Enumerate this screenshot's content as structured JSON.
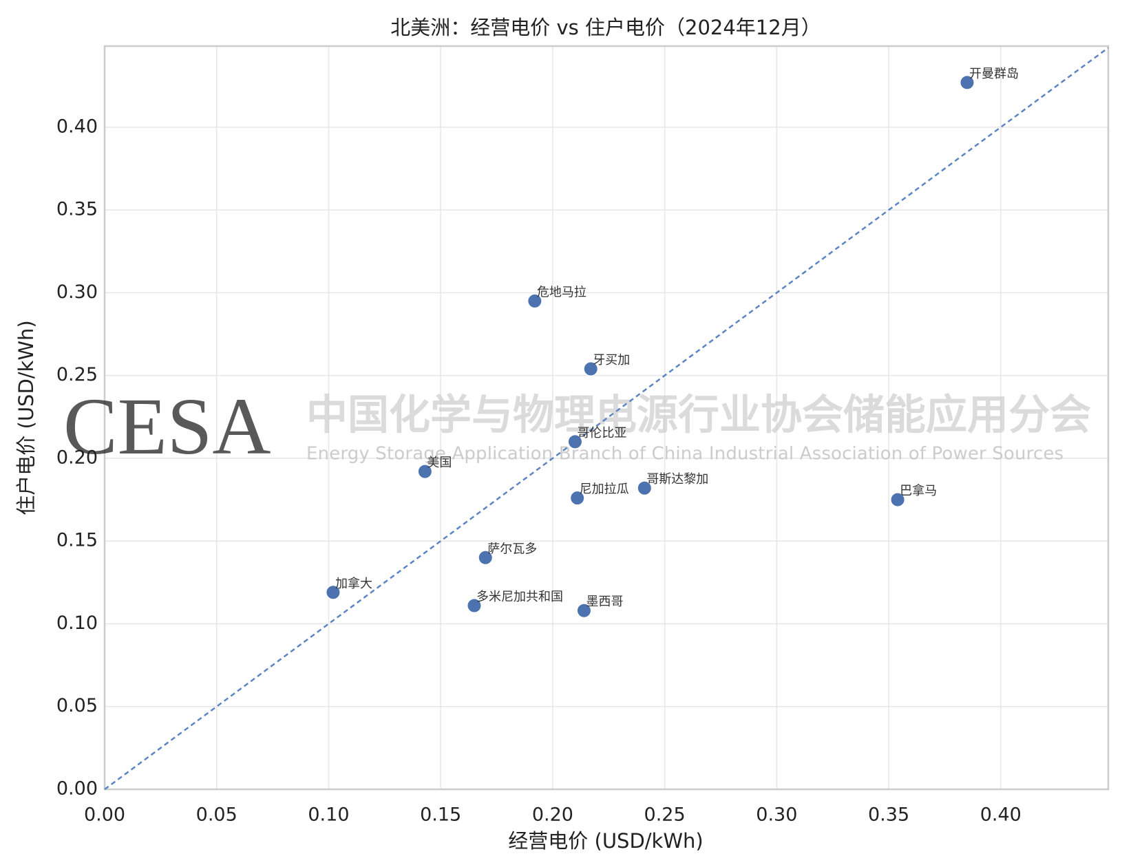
{
  "chart_data": {
    "type": "scatter",
    "title": "北美洲：经营电价 vs 住户电价（2024年12月）",
    "xlabel": "经营电价 (USD/kWh)",
    "ylabel": "住户电价 (USD/kWh)",
    "color": "#4c72b0",
    "labels": [
      "开曼群岛",
      "危地马拉",
      "牙买加",
      "哥伦比亚",
      "美国",
      "尼加拉瓜",
      "哥斯达黎加",
      "巴拿马",
      "萨尔瓦多",
      "加拿大",
      "多米尼加共和国",
      "墨西哥"
    ],
    "x": [
      0.385,
      0.192,
      0.217,
      0.21,
      0.143,
      0.211,
      0.241,
      0.354,
      0.17,
      0.102,
      0.165,
      0.214
    ],
    "values": [
      0.427,
      0.295,
      0.254,
      0.21,
      0.192,
      0.176,
      0.182,
      0.175,
      0.14,
      0.119,
      0.111,
      0.108
    ],
    "xlim": [
      0,
      0.448
    ],
    "ylim": [
      0,
      0.449
    ],
    "xticks": [
      {
        "value": 0,
        "label": "0.00"
      },
      {
        "value": 0.05,
        "label": "0.05"
      },
      {
        "value": 0.1,
        "label": "0.10"
      },
      {
        "value": 0.15,
        "label": "0.15"
      },
      {
        "value": 0.2,
        "label": "0.20"
      },
      {
        "value": 0.25,
        "label": "0.25"
      },
      {
        "value": 0.3,
        "label": "0.30"
      },
      {
        "value": 0.35,
        "label": "0.35"
      },
      {
        "value": 0.4,
        "label": "0.40"
      }
    ],
    "yticks": [
      {
        "value": 0,
        "label": "0.00"
      },
      {
        "value": 0.05,
        "label": "0.05"
      },
      {
        "value": 0.1,
        "label": "0.10"
      },
      {
        "value": 0.15,
        "label": "0.15"
      },
      {
        "value": 0.2,
        "label": "0.20"
      },
      {
        "value": 0.25,
        "label": "0.25"
      },
      {
        "value": 0.3,
        "label": "0.30"
      },
      {
        "value": 0.35,
        "label": "0.35"
      },
      {
        "value": 0.4,
        "label": "0.40"
      }
    ],
    "grid": true,
    "diagonal": true,
    "watermark": {
      "logo": "CESA",
      "cn": "中国化学与物理电源行业协会储能应用分会",
      "en": "Energy Storage Application Branch of China Industrial Association of Power Sources"
    }
  }
}
